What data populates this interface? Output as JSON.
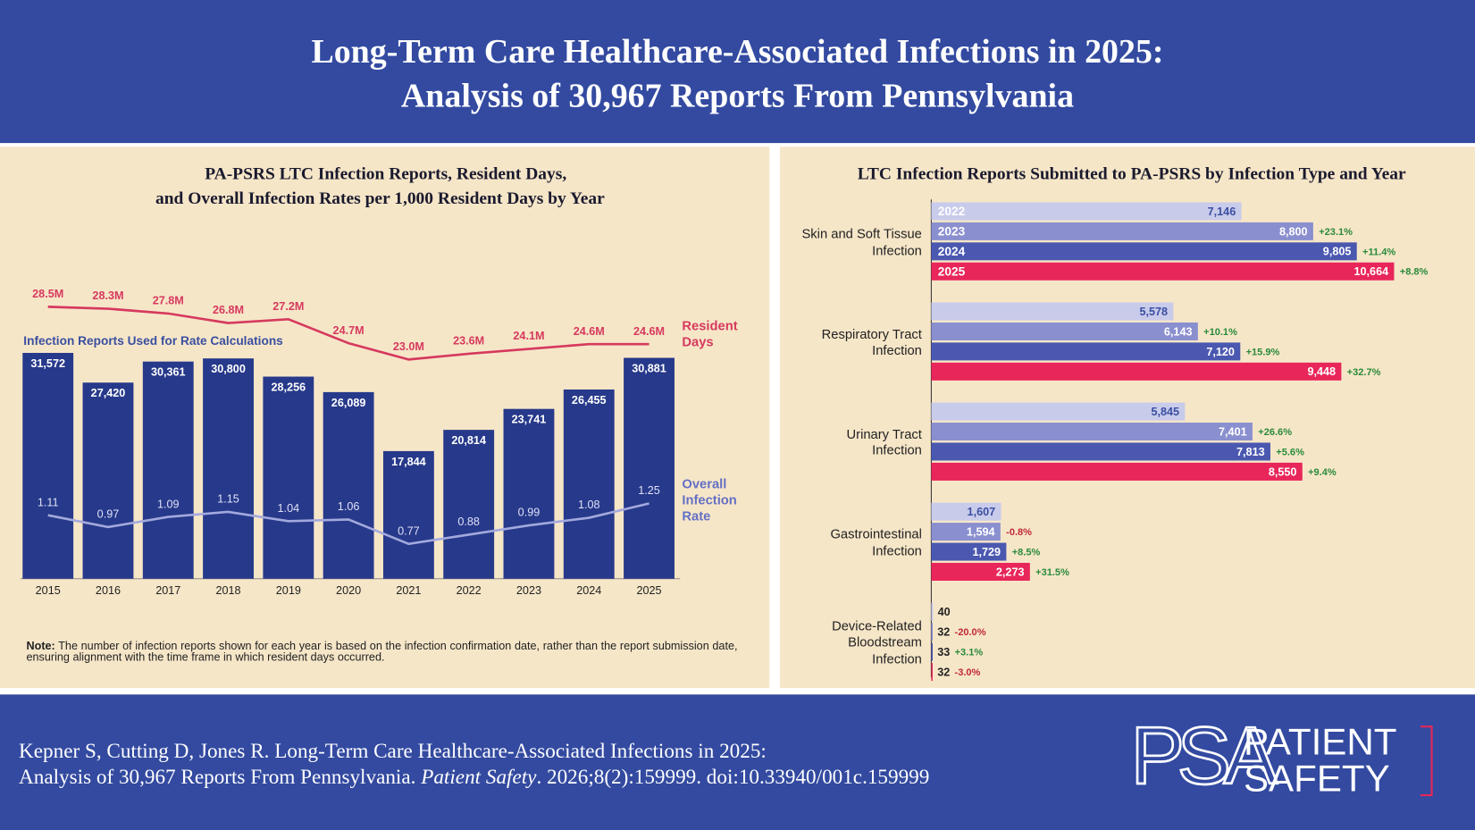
{
  "header": {
    "title": [
      "Long-Term Care Healthcare-Associated Infections in 2025:",
      "Analysis of 30,967 Reports From Pennsylvania"
    ]
  },
  "chart_data": [
    {
      "type": "bar",
      "title": [
        "PA-PSRS LTC Infection Reports, Resident Days,",
        "and Overall Infection Rates per 1,000 Resident Days by Year"
      ],
      "categories": [
        "2015",
        "2016",
        "2017",
        "2018",
        "2019",
        "2020",
        "2021",
        "2022",
        "2023",
        "2024",
        "2025"
      ],
      "series": [
        {
          "name": "Infection Reports Used for Rate Calculations",
          "type": "bar",
          "color": "#27398a",
          "values": [
            31572,
            27420,
            30361,
            30800,
            28256,
            26089,
            17844,
            20814,
            23741,
            26455,
            30881
          ],
          "value_labels": [
            "31,572",
            "27,420",
            "30,361",
            "30,800",
            "28,256",
            "26,089",
            "17,844",
            "20,814",
            "23,741",
            "26,455",
            "30,881"
          ]
        },
        {
          "name": "Resident Days",
          "type": "line",
          "color": "#d63a5e",
          "values": [
            28500000,
            28300000,
            27800000,
            26800000,
            27200000,
            24700000,
            23000000,
            23600000,
            24100000,
            24600000,
            24600000
          ],
          "value_labels": [
            "28.5M",
            "28.3M",
            "27.8M",
            "26.8M",
            "27.2M",
            "24.7M",
            "23.0M",
            "23.6M",
            "24.1M",
            "24.6M",
            "24.6M"
          ]
        },
        {
          "name": "Overall Infection Rate",
          "type": "line",
          "color": "#a3a9dd",
          "label_color": "#6470c4",
          "values": [
            1.11,
            0.97,
            1.09,
            1.15,
            1.04,
            1.06,
            0.77,
            0.88,
            0.99,
            1.08,
            1.25
          ]
        }
      ],
      "note": {
        "label": "Note:",
        "text": "The number of infection reports shown for each year is based on the infection confirmation date, rather than the report submission date, ensuring alignment with the time frame in which resident days occurred."
      }
    },
    {
      "type": "hbar",
      "title": "LTC Infection Reports Submitted to PA-PSRS by Infection Type and Year",
      "categories": [
        "Skin and Soft Tissue Infection",
        "Respiratory Tract Infection",
        "Urinary Tract Infection",
        "Gastrointestinal Infection",
        "Device-Related Bloodstream Infection"
      ],
      "series": [
        {
          "name": "2022",
          "color": "#c9cbeb",
          "values": [
            7146,
            5578,
            5845,
            1607,
            40
          ],
          "value_labels": [
            "7,146",
            "5,578",
            "5,845",
            "1,607",
            "40"
          ]
        },
        {
          "name": "2023",
          "color": "#8a8fcf",
          "values": [
            8800,
            6143,
            7401,
            1594,
            32
          ],
          "value_labels": [
            "8,800",
            "6,143",
            "7,401",
            "1,594",
            "32"
          ],
          "changes": [
            23.1,
            10.1,
            26.6,
            -0.8,
            -20.0
          ],
          "change_labels": [
            "+23.1%",
            "+10.1%",
            "+26.6%",
            "-0.8%",
            "-20.0%"
          ]
        },
        {
          "name": "2024",
          "color": "#4b58b0",
          "values": [
            9805,
            7120,
            7813,
            1729,
            33
          ],
          "value_labels": [
            "9,805",
            "7,120",
            "7,813",
            "1,729",
            "33"
          ],
          "changes": [
            11.4,
            15.9,
            5.6,
            8.5,
            3.1
          ],
          "change_labels": [
            "+11.4%",
            "+15.9%",
            "+5.6%",
            "+8.5%",
            "+3.1%"
          ]
        },
        {
          "name": "2025",
          "color": "#e8265a",
          "values": [
            10664,
            9448,
            8550,
            2273,
            32
          ],
          "value_labels": [
            "10,664",
            "9,448",
            "8,550",
            "2,273",
            "32"
          ],
          "changes": [
            8.8,
            32.7,
            9.4,
            31.5,
            -3.0
          ],
          "change_labels": [
            "+8.8%",
            "+32.7%",
            "+9.4%",
            "+31.5%",
            "-3.0%"
          ]
        }
      ]
    }
  ],
  "citation": {
    "line1": "Kepner S, Cutting D, Jones R. Long-Term Care Healthcare-Associated Infections in 2025:",
    "line2_start": "Analysis of 30,967 Reports From Pennsylvania. ",
    "journal": "Patient Safety",
    "line2_end": ". 2026;8(2):159999. doi:10.33940/001c.159999"
  },
  "logo": {
    "mark": "PSA",
    "line1": "PATIENT",
    "line2": "SAFETY"
  }
}
